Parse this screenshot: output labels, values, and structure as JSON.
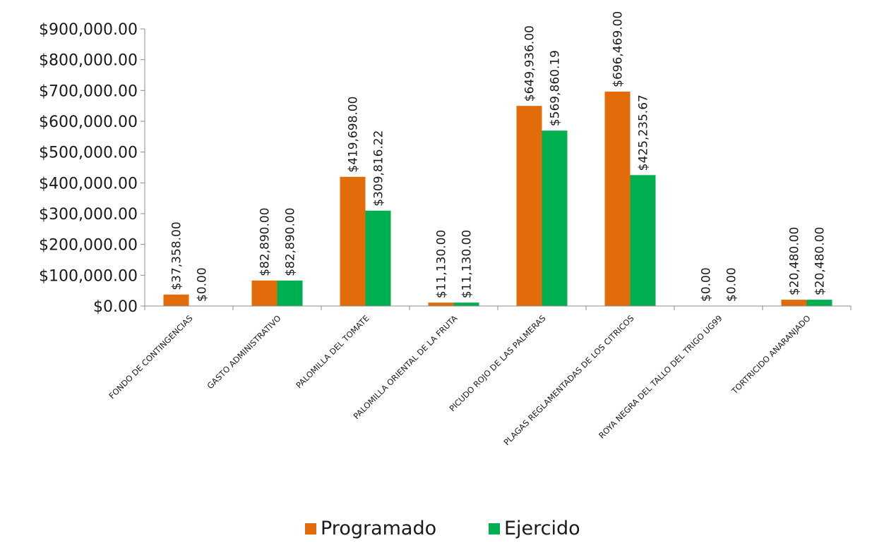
{
  "chart_data": {
    "type": "bar",
    "title": "",
    "xlabel": "",
    "ylabel": "",
    "ylim": [
      0,
      900000
    ],
    "yticks": [
      0,
      100000,
      200000,
      300000,
      400000,
      500000,
      600000,
      700000,
      800000,
      900000
    ],
    "ytick_labels": [
      "$0.00",
      "$100,000.00",
      "$200,000.00",
      "$300,000.00",
      "$400,000.00",
      "$500,000.00",
      "$600,000.00",
      "$700,000.00",
      "$800,000.00",
      "$900,000.00"
    ],
    "grid": false,
    "legend_position": "bottom",
    "categories": [
      "FONDO DE CONTINGENCIAS",
      "GASTO ADMINISTRATIVO",
      "PALOMILLA DEL TOMATE",
      "PALOMILLA ORIENTAL DE LA FRUTA",
      "PICUDO ROJO DE LAS PALMERAS",
      "PLAGAS REGLAMENTADAS DE LOS CITRICOS",
      "ROYA NEGRA DEL TALLO DEL TRIGO UG99",
      "TORTRICIDO ANARANJADO"
    ],
    "series": [
      {
        "name": "Programado",
        "color": "#E36C0A",
        "values": [
          37358,
          82890,
          419698,
          11130,
          649936,
          696469,
          0,
          20480
        ],
        "labels": [
          "$37,358.00",
          "$82,890.00",
          "$419,698.00",
          "$11,130.00",
          "$649,936.00",
          "$696,469.00",
          "$0.00",
          "$20,480.00"
        ]
      },
      {
        "name": "Ejercido",
        "color": "#00B050",
        "values": [
          0,
          82890,
          309816.22,
          11130,
          569860.19,
          425235.67,
          0,
          20480
        ],
        "labels": [
          "$0.00",
          "$82,890.00",
          "$309,816.22",
          "$11,130.00",
          "$569,860.19",
          "$425,235.67",
          "$0.00",
          "$20,480.00"
        ]
      }
    ]
  }
}
